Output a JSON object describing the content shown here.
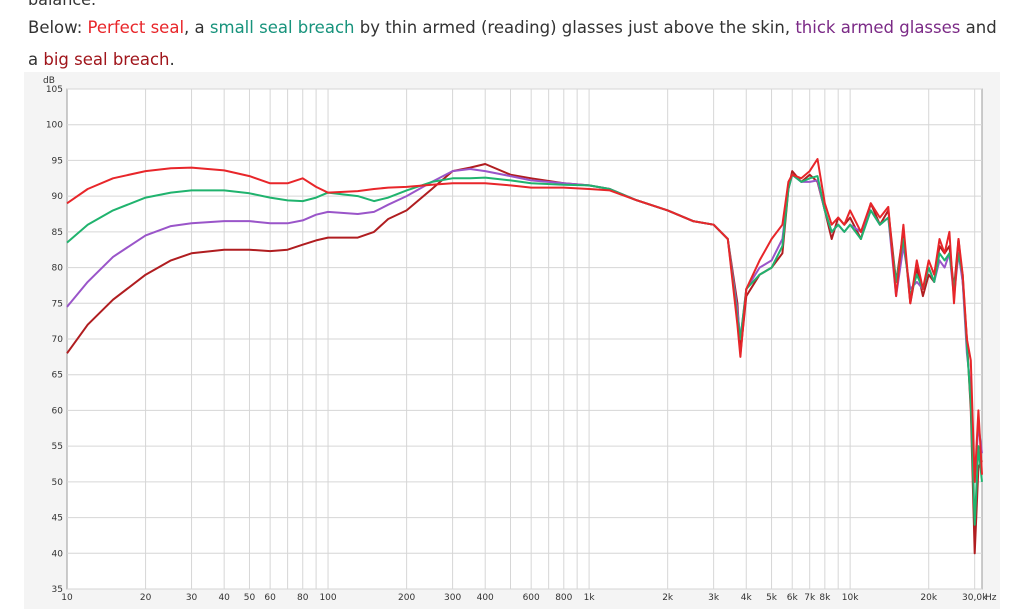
{
  "caption": {
    "cut_line": "balance.",
    "prefix": "Below: ",
    "perfect": "Perfect seal",
    "sep1": ", a ",
    "small": "small seal breach",
    "mid": " by thin armed (reading) glasses just above the skin, ",
    "thick": "thick armed glasses",
    "and": " and a ",
    "big": "big seal breach",
    "end": "."
  },
  "colors": {
    "perfect": "#e8262a",
    "small": "#20b36e",
    "thick": "#9a55c9",
    "big": "#b01d20",
    "grid": "#d6d6d6",
    "plot_bg": "#ffffff",
    "frame_bg": "#f4f4f4"
  },
  "chart_data": {
    "type": "line",
    "title": "",
    "xlabel": "",
    "ylabel": "dB",
    "x_unit": "Hz",
    "x_scale": "log",
    "xlim": [
      10,
      32000
    ],
    "ylim": [
      35,
      105
    ],
    "grid": true,
    "y_ticks": [
      "105",
      "100",
      "95",
      "90",
      "85",
      "80",
      "75",
      "70",
      "65",
      "60",
      "55",
      "50",
      "45",
      "40",
      "35"
    ],
    "x_ticks": [
      {
        "v": 10,
        "label": "10"
      },
      {
        "v": 20,
        "label": "20"
      },
      {
        "v": 30,
        "label": "30"
      },
      {
        "v": 40,
        "label": "40"
      },
      {
        "v": 50,
        "label": "50"
      },
      {
        "v": 60,
        "label": "60"
      },
      {
        "v": 80,
        "label": "80"
      },
      {
        "v": 100,
        "label": "100"
      },
      {
        "v": 200,
        "label": "200"
      },
      {
        "v": 300,
        "label": "300"
      },
      {
        "v": 400,
        "label": "400"
      },
      {
        "v": 600,
        "label": "600"
      },
      {
        "v": 800,
        "label": "800"
      },
      {
        "v": 1000,
        "label": "1k"
      },
      {
        "v": 2000,
        "label": "2k"
      },
      {
        "v": 3000,
        "label": "3k"
      },
      {
        "v": 4000,
        "label": "4k"
      },
      {
        "v": 5000,
        "label": "5k"
      },
      {
        "v": 6000,
        "label": "6k"
      },
      {
        "v": 7000,
        "label": "7k"
      },
      {
        "v": 8000,
        "label": "8k"
      },
      {
        "v": 10000,
        "label": "10k"
      },
      {
        "v": 20000,
        "label": "20k"
      },
      {
        "v": 30000,
        "label": "30,0k"
      }
    ],
    "x_unit_label": "Hz",
    "series": [
      {
        "key": "big",
        "x": [
          10,
          12,
          15,
          20,
          25,
          30,
          40,
          50,
          60,
          70,
          80,
          90,
          100,
          130,
          150,
          170,
          200,
          250,
          300,
          350,
          400,
          500,
          600,
          800,
          1000,
          1200,
          1500,
          2000,
          2500,
          3000,
          3400,
          3700,
          3800,
          4000,
          4500,
          5000,
          5500,
          5800,
          6000,
          6500,
          7000,
          7500,
          8000,
          8500,
          9000,
          9500,
          10000,
          11000,
          12000,
          13000,
          14000,
          15000,
          16000,
          17000,
          18000,
          19000,
          20000,
          21000,
          22000,
          23000,
          24000,
          25000,
          26000,
          27000,
          28000,
          29000,
          30000,
          31000,
          32000
        ],
        "y": [
          68,
          72,
          75.5,
          79,
          81,
          82,
          82.5,
          82.5,
          82.3,
          82.5,
          83.2,
          83.8,
          84.2,
          84.2,
          85,
          86.8,
          88,
          91,
          93.5,
          94,
          94.5,
          93,
          92.5,
          91.8,
          91.5,
          91,
          89.5,
          88,
          86.5,
          86,
          84,
          75,
          68,
          76,
          79,
          80,
          82,
          91,
          93.5,
          92,
          93,
          92,
          88,
          84,
          87,
          86,
          87,
          84,
          89,
          86,
          88,
          78,
          85,
          75,
          80,
          76,
          79,
          78,
          83,
          82,
          83,
          77,
          84,
          78,
          70,
          60,
          40,
          52,
          53
        ]
      },
      {
        "key": "thick",
        "x": [
          10,
          12,
          15,
          20,
          25,
          30,
          40,
          50,
          60,
          70,
          80,
          90,
          100,
          130,
          150,
          170,
          200,
          250,
          300,
          350,
          400,
          500,
          600,
          800,
          1000,
          1200,
          1500,
          2000,
          2500,
          3000,
          3400,
          3700,
          3800,
          4000,
          4500,
          5000,
          5500,
          5800,
          6000,
          6500,
          7000,
          7500,
          8000,
          8500,
          9000,
          9500,
          10000,
          11000,
          12000,
          13000,
          14000,
          15000,
          16000,
          17000,
          18000,
          19000,
          20000,
          21000,
          22000,
          23000,
          24000,
          25000,
          26000,
          27000,
          28000,
          29000,
          30000,
          31000,
          32000
        ],
        "y": [
          74.5,
          78,
          81.5,
          84.5,
          85.8,
          86.2,
          86.5,
          86.5,
          86.2,
          86.2,
          86.6,
          87.4,
          87.8,
          87.5,
          87.8,
          88.8,
          90,
          92,
          93.5,
          93.8,
          93.5,
          92.8,
          92.2,
          91.8,
          91.5,
          91,
          89.5,
          88,
          86.5,
          86,
          84,
          74,
          70,
          77,
          80,
          81,
          84,
          91,
          93,
          92,
          92,
          92.2,
          88,
          85,
          86,
          85,
          86,
          85,
          88,
          86,
          87,
          76,
          83,
          77,
          78,
          77,
          80,
          78,
          81,
          80,
          82,
          76,
          82,
          78,
          68,
          63,
          50,
          58,
          54
        ]
      },
      {
        "key": "small",
        "x": [
          10,
          12,
          15,
          20,
          25,
          30,
          40,
          50,
          60,
          70,
          80,
          90,
          100,
          130,
          150,
          170,
          200,
          250,
          300,
          350,
          400,
          500,
          600,
          800,
          1000,
          1200,
          1500,
          2000,
          2500,
          3000,
          3400,
          3700,
          3800,
          4000,
          4500,
          5000,
          5500,
          5800,
          6000,
          6500,
          7000,
          7500,
          8000,
          8500,
          9000,
          9500,
          10000,
          11000,
          12000,
          13000,
          14000,
          15000,
          16000,
          17000,
          18000,
          19000,
          20000,
          21000,
          22000,
          23000,
          24000,
          25000,
          26000,
          27000,
          28000,
          29000,
          30000,
          31000,
          32000
        ],
        "y": [
          83.5,
          86,
          88,
          89.8,
          90.5,
          90.8,
          90.8,
          90.4,
          89.8,
          89.4,
          89.3,
          89.8,
          90.5,
          90,
          89.3,
          89.8,
          90.8,
          92,
          92.5,
          92.5,
          92.6,
          92.2,
          91.8,
          91.6,
          91.5,
          91,
          89.5,
          88,
          86.5,
          86,
          84,
          73,
          70,
          77,
          79,
          80,
          83,
          91,
          93,
          92,
          92.5,
          92.8,
          88,
          85,
          86,
          85,
          86,
          84,
          88,
          86,
          87,
          78,
          84,
          76,
          79,
          77,
          80,
          78,
          82,
          81,
          82,
          77,
          82,
          79,
          69,
          61,
          44,
          55,
          50
        ]
      },
      {
        "key": "perfect",
        "x": [
          10,
          12,
          15,
          20,
          25,
          30,
          40,
          50,
          60,
          70,
          80,
          90,
          100,
          130,
          150,
          170,
          200,
          250,
          300,
          350,
          400,
          500,
          600,
          800,
          1000,
          1200,
          1500,
          2000,
          2500,
          3000,
          3400,
          3700,
          3800,
          4000,
          4500,
          5000,
          5500,
          5800,
          6000,
          6500,
          7000,
          7500,
          8000,
          8500,
          9000,
          9500,
          10000,
          11000,
          12000,
          13000,
          14000,
          15000,
          16000,
          17000,
          18000,
          19000,
          20000,
          21000,
          22000,
          23000,
          24000,
          25000,
          26000,
          27000,
          28000,
          29000,
          30000,
          31000,
          32000
        ],
        "y": [
          89,
          91,
          92.5,
          93.5,
          93.9,
          94,
          93.6,
          92.8,
          91.8,
          91.8,
          92.5,
          91.3,
          90.5,
          90.7,
          91,
          91.2,
          91.3,
          91.6,
          91.8,
          91.8,
          91.8,
          91.5,
          91.2,
          91.2,
          91,
          90.8,
          89.5,
          88,
          86.5,
          86,
          84,
          72,
          67.5,
          77,
          81,
          84,
          86,
          92,
          93,
          92.5,
          93.5,
          95.2,
          89,
          86,
          87,
          86,
          88,
          85,
          89,
          87,
          88.5,
          76,
          86,
          75,
          81,
          77,
          81,
          79,
          84,
          82,
          85,
          75,
          84,
          79,
          70,
          67,
          50,
          60,
          51
        ]
      }
    ]
  }
}
